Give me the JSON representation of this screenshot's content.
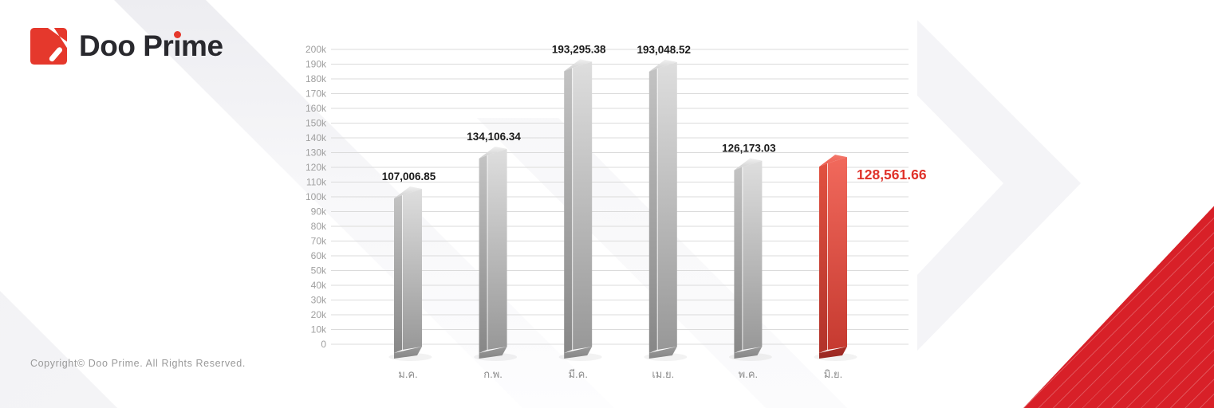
{
  "logo": {
    "brand": "Doo Prime",
    "accent_color": "#e5382c",
    "text_color": "#29292e"
  },
  "footer": {
    "copyright": "Copyright© Doo Prime. All Rights Reserved."
  },
  "colors": {
    "highlight_red": "#e0322a",
    "corner_red": "#d82028",
    "grid": "#dbdbdb"
  },
  "chart_data": {
    "type": "bar",
    "title": "",
    "xlabel": "",
    "ylabel": "",
    "categories": [
      "ม.ค.",
      "ก.พ.",
      "มี.ค.",
      "เม.ย.",
      "พ.ค.",
      "มิ.ย."
    ],
    "values": [
      107006.85,
      134106.34,
      193295.38,
      193048.52,
      126173.03,
      128561.66
    ],
    "value_labels": [
      "107,006.85",
      "134,106.34",
      "193,295.38",
      "193,048.52",
      "126,173.03",
      "128,561.66"
    ],
    "highlight_index": 5,
    "highlight_label_color": "#e0322a",
    "ylim": [
      0,
      200000
    ],
    "ytick_step": 10000,
    "ytick_labels": [
      "0",
      "10k",
      "20k",
      "30k",
      "40k",
      "50k",
      "60k",
      "70k",
      "80k",
      "90k",
      "100k",
      "110k",
      "120k",
      "130k",
      "140k",
      "150k",
      "160k",
      "170k",
      "180k",
      "190k",
      "200k"
    ],
    "grid": true,
    "legend_position": "none",
    "bar_style": "3d-column",
    "bar_color_default": "gray",
    "bar_color_highlight": "red"
  }
}
